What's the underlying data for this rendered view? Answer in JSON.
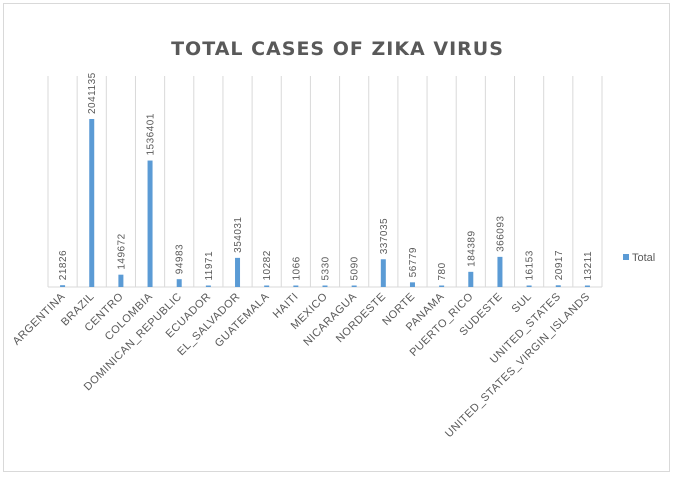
{
  "chart_data": {
    "type": "bar",
    "title": "TOTAL CASES OF ZIKA VIRUS",
    "categories": [
      "ARGENTINA",
      "BRAZIL",
      "CENTRO",
      "COLOMBIA",
      "DOMINICAN_REPUBLIC",
      "ECUADOR",
      "EL_SALVADOR",
      "GUATEMALA",
      "HAITI",
      "MEXICO",
      "NICARAGUA",
      "NORDESTE",
      "NORTE",
      "PANAMA",
      "PUERTO_RICO",
      "SUDESTE",
      "SUL",
      "UNITED_STATES",
      "UNITED_STATES_VIRGIN_ISLANDS"
    ],
    "series": [
      {
        "name": "Total",
        "values": [
          21826,
          2041135,
          149672,
          1536401,
          94983,
          11971,
          354031,
          10282,
          1066,
          5330,
          5090,
          337035,
          56779,
          780,
          184389,
          366093,
          16153,
          20917,
          13211
        ]
      }
    ],
    "ylim": [
      0,
      2041135
    ],
    "grid": "vertical",
    "legend_position": "right",
    "colors": {
      "bar": "#5b9bd5",
      "grid": "#d9d9d9",
      "text": "#595959"
    }
  }
}
